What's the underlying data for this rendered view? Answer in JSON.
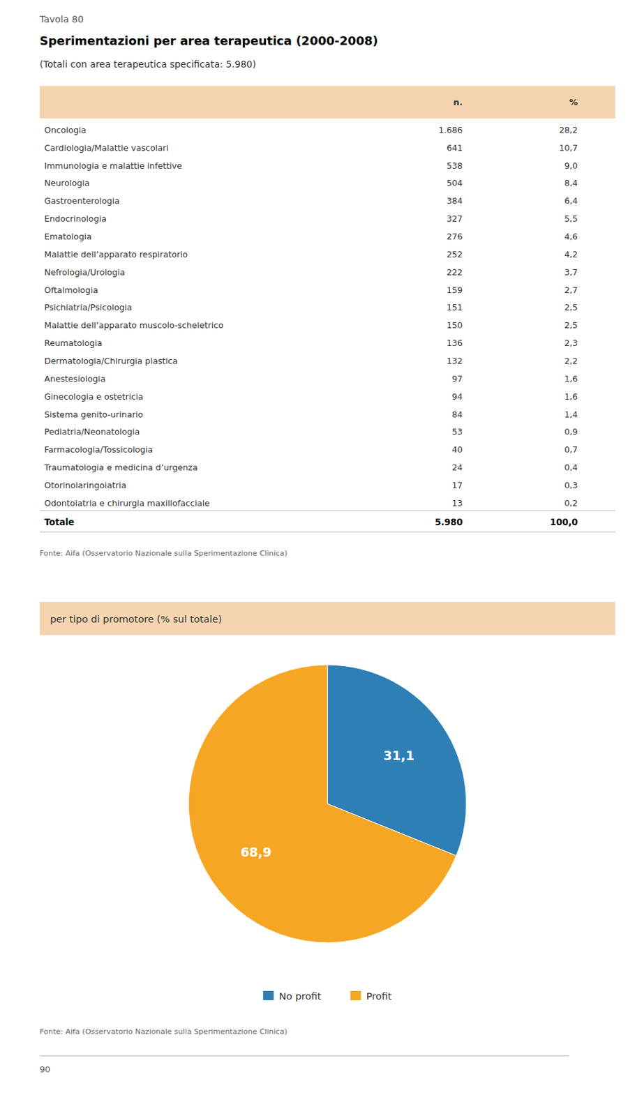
{
  "tavola": "Tavola 80",
  "title": "Sperimentazioni per area terapeutica (2000-2008)",
  "subtitle": "(Totali con area terapeutica specificata: 5.980)",
  "table": {
    "columns": [
      "n.",
      "%"
    ],
    "rows": [
      {
        "label": "Oncologia",
        "n": "1.686",
        "pct": "28,2"
      },
      {
        "label": "Cardiologia/Malattie vascolari",
        "n": "641",
        "pct": "10,7"
      },
      {
        "label": "Immunologia e malattie infettive",
        "n": "538",
        "pct": "9,0"
      },
      {
        "label": "Neurologia",
        "n": "504",
        "pct": "8,4"
      },
      {
        "label": "Gastroenterologia",
        "n": "384",
        "pct": "6,4"
      },
      {
        "label": "Endocrinologia",
        "n": "327",
        "pct": "5,5"
      },
      {
        "label": "Ematologia",
        "n": "276",
        "pct": "4,6"
      },
      {
        "label": "Malattie dell’apparato respiratorio",
        "n": "252",
        "pct": "4,2"
      },
      {
        "label": "Nefrologia/Urologia",
        "n": "222",
        "pct": "3,7"
      },
      {
        "label": "Oftalmologia",
        "n": "159",
        "pct": "2,7"
      },
      {
        "label": "Psichiatria/Psicologia",
        "n": "151",
        "pct": "2,5"
      },
      {
        "label": "Malattie dell’apparato muscolo-scheletrico",
        "n": "150",
        "pct": "2,5"
      },
      {
        "label": "Reumatologia",
        "n": "136",
        "pct": "2,3"
      },
      {
        "label": "Dermatologia/Chirurgia plastica",
        "n": "132",
        "pct": "2,2"
      },
      {
        "label": "Anestesiologia",
        "n": "97",
        "pct": "1,6"
      },
      {
        "label": "Ginecologia e ostetricia",
        "n": "94",
        "pct": "1,6"
      },
      {
        "label": "Sistema genito-urinario",
        "n": "84",
        "pct": "1,4"
      },
      {
        "label": "Pediatria/Neonatologia",
        "n": "53",
        "pct": "0,9"
      },
      {
        "label": "Farmacologia/Tossicologia",
        "n": "40",
        "pct": "0,7"
      },
      {
        "label": "Traumatologia e medicina d’urgenza",
        "n": "24",
        "pct": "0,4"
      },
      {
        "label": "Otorinolaringoiatria",
        "n": "17",
        "pct": "0,3"
      },
      {
        "label": "Odontoiatria e chirurgia maxillofacciale",
        "n": "13",
        "pct": "0,2"
      }
    ],
    "total": {
      "label": "Totale",
      "n": "5.980",
      "pct": "100,0"
    }
  },
  "source": "Fonte: Aifa (Osservatorio Nazionale sulla Sperimentazione Clinica)",
  "chart_data": {
    "type": "pie",
    "title": "per tipo di promotore (% sul totale)",
    "categories": [
      "No profit",
      "Profit"
    ],
    "values": [
      31.1,
      68.9
    ],
    "value_labels": [
      "31,1",
      "68,9"
    ],
    "colors": [
      "#2e7fb5",
      "#f5a623"
    ],
    "data_labels": true,
    "legend": "bottom"
  },
  "page_number": "90"
}
